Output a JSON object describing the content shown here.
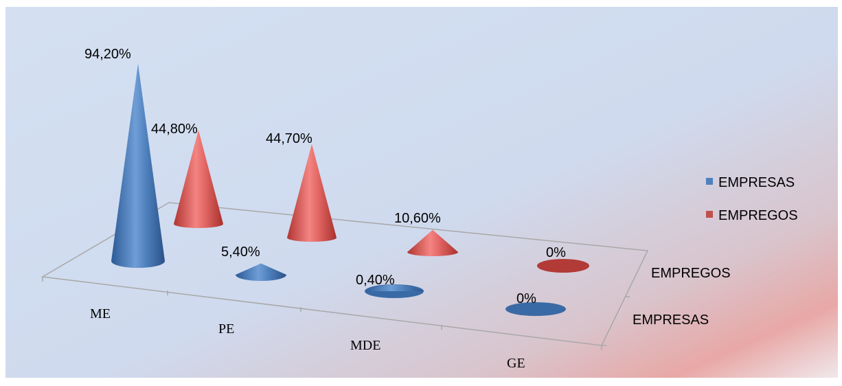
{
  "chart_data": {
    "type": "bar",
    "subtype": "3d-cone",
    "categories": [
      "ME",
      "PE",
      "MDE",
      "GE"
    ],
    "depth_categories": [
      "EMPREGOS",
      "EMPRESAS"
    ],
    "series": [
      {
        "name": "EMPRESAS",
        "values": [
          94.2,
          5.4,
          0.4,
          0
        ],
        "labels": [
          "94,20%",
          "5,40%",
          "0,40%",
          "0%"
        ],
        "color": "#4F81BD"
      },
      {
        "name": "EMPREGOS",
        "values": [
          44.8,
          44.7,
          10.6,
          0
        ],
        "labels": [
          "44,80%",
          "44,70%",
          "10,60%",
          "0%"
        ],
        "color": "#C0504D"
      }
    ],
    "ylim": [
      0,
      100
    ],
    "legend_position": "right",
    "gridlines": false,
    "background": "#D3DEF0"
  }
}
